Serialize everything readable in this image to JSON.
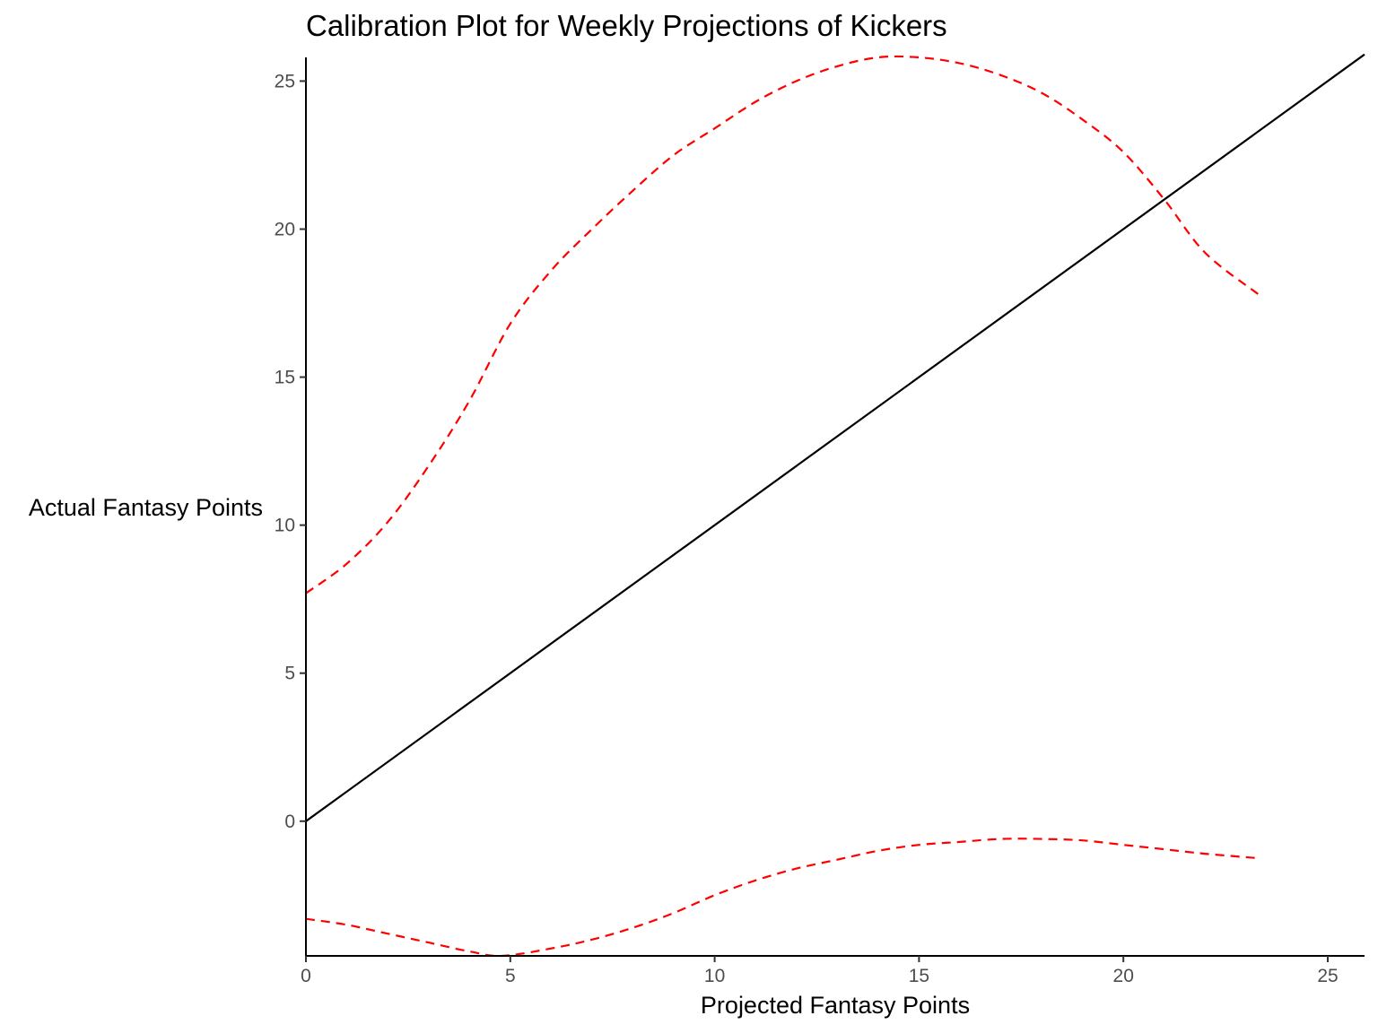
{
  "chart_data": {
    "type": "line",
    "title": "Calibration Plot for Weekly Projections of Kickers",
    "xlabel": "Projected Fantasy Points",
    "ylabel": "Actual Fantasy Points",
    "xlim": [
      0,
      25.9
    ],
    "ylim": [
      -4.55,
      25.8
    ],
    "x_ticks": [
      0,
      5,
      10,
      15,
      20,
      25
    ],
    "y_ticks": [
      0,
      5,
      10,
      15,
      20,
      25
    ],
    "grid": false,
    "legend": "none",
    "series": [
      {
        "style": "solid",
        "color": "#000000",
        "x": [
          0,
          25.9
        ],
        "y": [
          0,
          25.9
        ]
      },
      {
        "style": "dashed",
        "color": "#ff0000",
        "x": [
          0,
          1,
          2,
          3,
          4,
          5,
          6,
          7,
          8,
          9,
          10,
          11,
          12,
          13,
          14,
          15,
          16,
          17,
          18,
          19,
          20,
          21,
          22,
          23.3
        ],
        "y": [
          7.7,
          8.7,
          10.1,
          12.0,
          14.2,
          16.8,
          18.6,
          20.0,
          21.3,
          22.5,
          23.4,
          24.3,
          25.0,
          25.5,
          25.8,
          25.8,
          25.6,
          25.2,
          24.6,
          23.7,
          22.6,
          21.0,
          19.2,
          17.8
        ]
      },
      {
        "style": "dashed",
        "color": "#ff0000",
        "x": [
          0,
          1,
          2,
          3,
          4,
          4.8,
          6,
          7,
          8,
          9,
          10,
          11,
          12,
          13,
          14,
          15,
          16,
          17,
          18,
          19,
          20,
          21,
          22,
          23.3
        ],
        "y": [
          -3.3,
          -3.5,
          -3.8,
          -4.1,
          -4.4,
          -4.55,
          -4.3,
          -4.0,
          -3.6,
          -3.1,
          -2.5,
          -2.0,
          -1.6,
          -1.3,
          -1.0,
          -0.8,
          -0.7,
          -0.6,
          -0.6,
          -0.65,
          -0.8,
          -0.95,
          -1.1,
          -1.25
        ]
      }
    ]
  }
}
